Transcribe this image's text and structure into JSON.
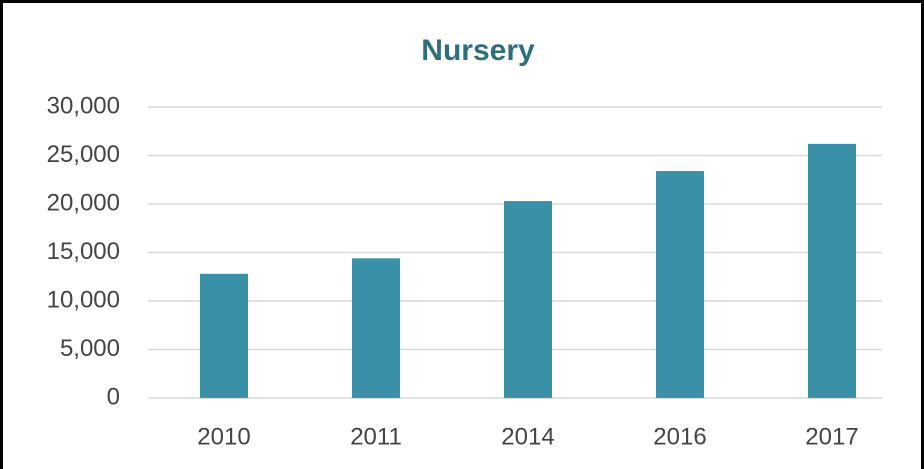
{
  "chart_data": {
    "type": "bar",
    "title": "Nursery",
    "categories": [
      "2010",
      "2011",
      "2014",
      "2016",
      "2017"
    ],
    "values": [
      12800,
      14400,
      20300,
      23400,
      26200
    ],
    "color": "#3a91a7",
    "ylim": [
      0,
      30000
    ],
    "yticks": [
      0,
      {
        "value": 5000,
        "label": "5,000"
      },
      {
        "value": 10000,
        "label": "10,000"
      },
      {
        "value": 15000,
        "label": "15,000"
      },
      {
        "value": 20000,
        "label": "20,000"
      },
      {
        "value": 25000,
        "label": "25,000"
      },
      {
        "value": 30000,
        "label": "30,000"
      }
    ],
    "grid": true
  }
}
